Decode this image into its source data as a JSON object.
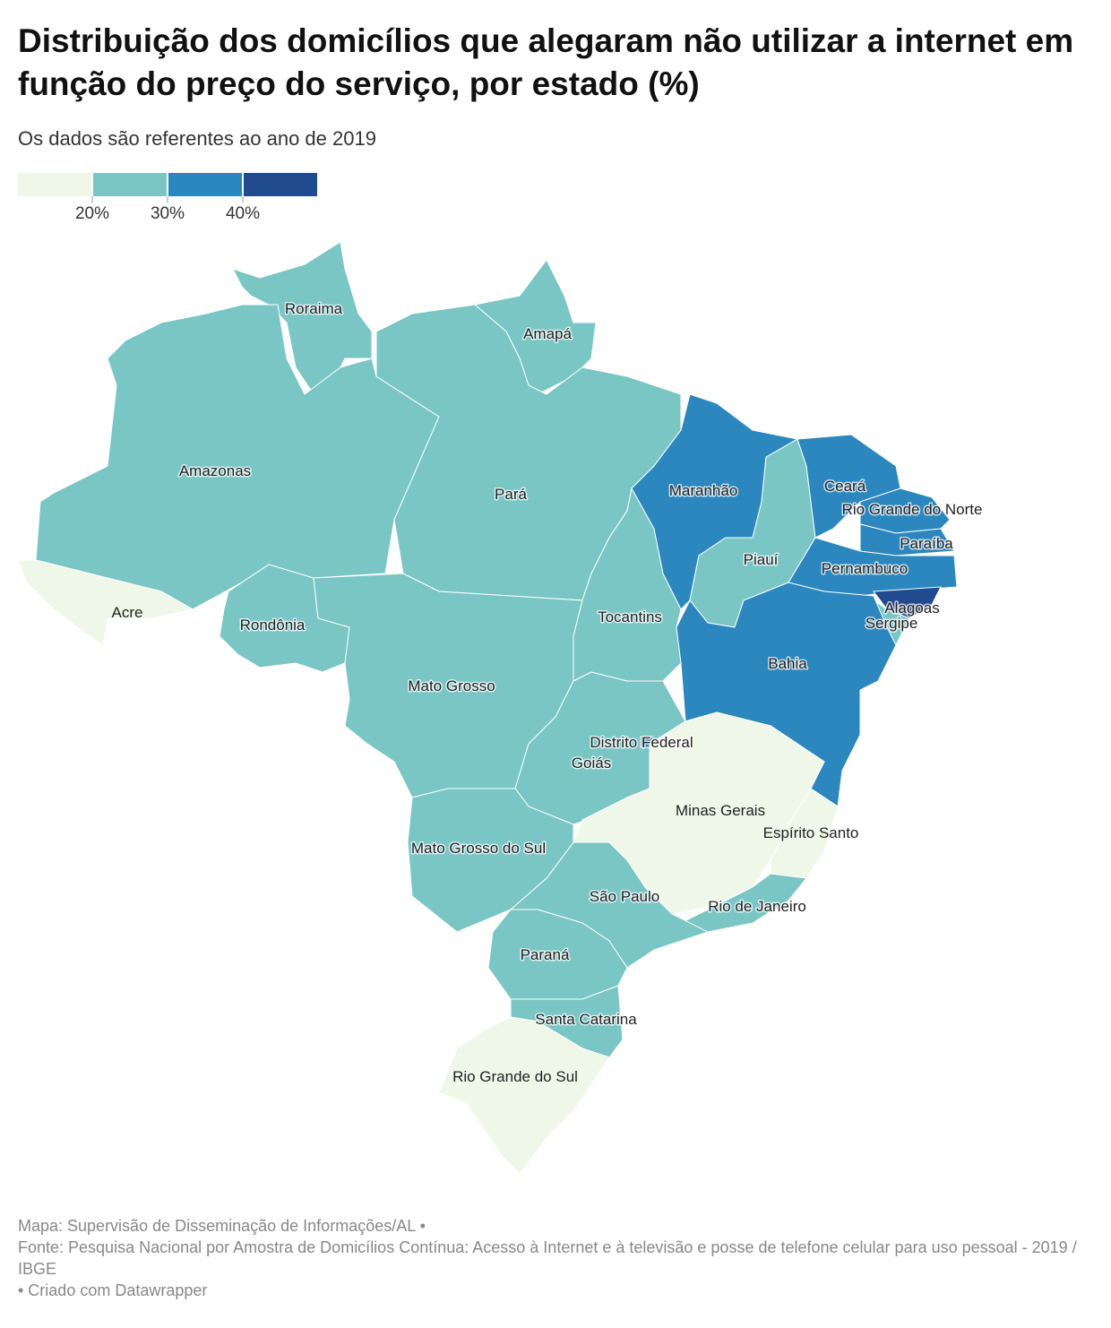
{
  "header": {
    "title": "Distribuição dos domicílios que alegaram não utilizar a internet em função do preço do serviço, por estado (%)",
    "subtitle": "Os dados são referentes ao ano de 2019"
  },
  "legend": {
    "colors": [
      "#eff7e9",
      "#79c6c5",
      "#2b87bd",
      "#214b8f"
    ],
    "ticks": [
      {
        "value": 20,
        "label": "20%"
      },
      {
        "value": 30,
        "label": "30%"
      },
      {
        "value": 40,
        "label": "40%"
      }
    ]
  },
  "states": [
    {
      "name": "Roraima",
      "color": "#79c6c5"
    },
    {
      "name": "Amapá",
      "color": "#79c6c5"
    },
    {
      "name": "Amazonas",
      "color": "#79c6c5"
    },
    {
      "name": "Acre",
      "color": "#eff7e9"
    },
    {
      "name": "Rondônia",
      "color": "#79c6c5"
    },
    {
      "name": "Pará",
      "color": "#79c6c5"
    },
    {
      "name": "Mato Grosso",
      "color": "#79c6c5"
    },
    {
      "name": "Tocantins",
      "color": "#79c6c5"
    },
    {
      "name": "Maranhão",
      "color": "#2b87bd"
    },
    {
      "name": "Piauí",
      "color": "#79c6c5"
    },
    {
      "name": "Ceará",
      "color": "#2b87bd"
    },
    {
      "name": "Rio Grande do Norte",
      "color": "#2b87bd"
    },
    {
      "name": "Paraíba",
      "color": "#2b87bd"
    },
    {
      "name": "Pernambuco",
      "color": "#2b87bd"
    },
    {
      "name": "Alagoas",
      "color": "#214b8f"
    },
    {
      "name": "Sergipe",
      "color": "#79c6c5"
    },
    {
      "name": "Bahia",
      "color": "#2b87bd"
    },
    {
      "name": "Goiás",
      "color": "#79c6c5"
    },
    {
      "name": "Distrito Federal",
      "color": "#2b87bd"
    },
    {
      "name": "Minas Gerais",
      "color": "#eff7e9"
    },
    {
      "name": "Espírito Santo",
      "color": "#eff7e9"
    },
    {
      "name": "Rio de Janeiro",
      "color": "#79c6c5"
    },
    {
      "name": "São Paulo",
      "color": "#79c6c5"
    },
    {
      "name": "Mato Grosso do Sul",
      "color": "#79c6c5"
    },
    {
      "name": "Paraná",
      "color": "#79c6c5"
    },
    {
      "name": "Santa Catarina",
      "color": "#79c6c5"
    },
    {
      "name": "Rio Grande do Sul",
      "color": "#eff7e9"
    }
  ],
  "footer": {
    "map": "Mapa: Supervisão de Disseminação de Informações/AL •",
    "source": "Fonte: Pesquisa Nacional por Amostra de Domicílios Contínua: Acesso à Internet e à televisão e posse de telefone celular para uso pessoal - 2019 / IBGE",
    "credit": "• Criado com Datawrapper"
  }
}
